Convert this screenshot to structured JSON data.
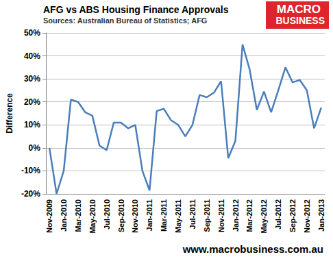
{
  "chart_data": {
    "type": "line",
    "title": "AFG vs ABS Housing Finance Approvals",
    "subtitle": "Sources: Australian Bureau of Statistics; AFG",
    "y_label": "Difference",
    "annotations": [
      "MACRO",
      "BUSINESS",
      "www.macrobusiness.com.au"
    ],
    "categories": [
      "Nov-2009",
      null,
      "Jan-2010",
      null,
      "Mar-2010",
      null,
      "May-2010",
      null,
      "Jul-2010",
      null,
      "Sep-2010",
      null,
      "Nov-2010",
      null,
      "Jan-2011",
      null,
      "Mar-2011",
      null,
      "May-2011",
      null,
      "Jul-2011",
      null,
      "Sep-2011",
      null,
      "Nov-2011",
      null,
      "Jan-2012",
      null,
      "Mar-2012",
      null,
      "May-2012",
      null,
      "Jul-2012",
      null,
      "Sep-2012",
      null,
      "Nov-2012",
      null,
      "Jan-2013"
    ],
    "values": [
      0,
      -20,
      -10,
      21,
      20,
      15.5,
      14,
      1,
      -1,
      11,
      11,
      8.5,
      10,
      -10,
      -18.5,
      16,
      17,
      12,
      10,
      5,
      10,
      23,
      22,
      24,
      29,
      -4.5,
      3,
      45,
      34,
      16.5,
      24.5,
      15.5,
      25,
      35,
      28.5,
      29.5,
      25,
      8.5,
      17.5
    ],
    "color": "#4a7ebb",
    "ylim": [
      -20,
      50
    ],
    "yticks": [
      {
        "value": -20,
        "label": "-20%"
      },
      {
        "value": -10,
        "label": "-10%"
      },
      {
        "value": 0,
        "label": "0%"
      },
      {
        "value": 10,
        "label": "10%"
      },
      {
        "value": 20,
        "label": "20%"
      },
      {
        "value": 30,
        "label": "30%"
      },
      {
        "value": 40,
        "label": "40%"
      },
      {
        "value": 50,
        "label": "50%"
      }
    ],
    "grid": true
  }
}
